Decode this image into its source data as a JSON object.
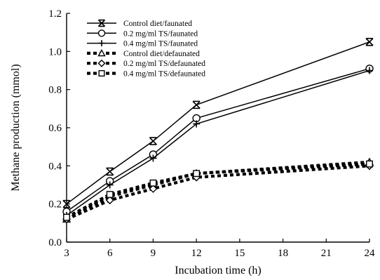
{
  "chart_data": {
    "type": "line",
    "title": "",
    "xlabel": "Incubation time (h)",
    "ylabel": "Methane production (mmol)",
    "x": [
      3,
      6,
      9,
      12,
      24
    ],
    "xlim": [
      3,
      24
    ],
    "ylim": [
      0.0,
      1.2
    ],
    "xticks": [
      "3",
      "6",
      "9",
      "12",
      "15",
      "18",
      "21",
      "24"
    ],
    "yticks": [
      "0.0",
      "0.2",
      "0.4",
      "0.6",
      "0.8",
      "1.0",
      "1.2"
    ],
    "grid": false,
    "legend_position": "top-left",
    "series": [
      {
        "name": "Control diet/faunated",
        "marker": "asterisk",
        "style": "solid",
        "values": [
          0.2,
          0.37,
          0.53,
          0.72,
          1.05
        ]
      },
      {
        "name": "0.2 mg/ml TS/faunated",
        "marker": "circle",
        "style": "solid",
        "values": [
          0.16,
          0.32,
          0.46,
          0.65,
          0.91
        ]
      },
      {
        "name": "0.4 mg/ml TS/faunated",
        "marker": "plus",
        "style": "solid",
        "values": [
          0.14,
          0.3,
          0.44,
          0.62,
          0.9
        ]
      },
      {
        "name": "Control diet/defaunated",
        "marker": "triangle",
        "style": "dashed",
        "values": [
          0.12,
          0.24,
          0.3,
          0.36,
          0.42
        ]
      },
      {
        "name": "0.2 mg/ml TS/defaunated",
        "marker": "diamond",
        "style": "dashed",
        "values": [
          0.12,
          0.22,
          0.28,
          0.34,
          0.4
        ]
      },
      {
        "name": "0.4 mg/ml TS/defaunated",
        "marker": "square",
        "style": "dashed",
        "values": [
          0.13,
          0.25,
          0.31,
          0.36,
          0.41
        ]
      }
    ]
  }
}
